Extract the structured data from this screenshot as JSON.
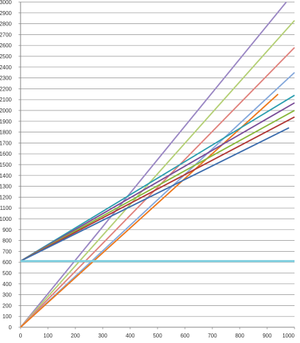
{
  "chart_data": {
    "type": "line",
    "title": "",
    "xlabel": "",
    "ylabel": "",
    "xlim": [
      0,
      1000
    ],
    "ylim": [
      0,
      3000
    ],
    "x_ticks": [
      0,
      100,
      200,
      300,
      400,
      500,
      600,
      700,
      800,
      900,
      1000
    ],
    "y_ticks": [
      0,
      100,
      200,
      300,
      400,
      500,
      600,
      700,
      800,
      900,
      1000,
      1100,
      1200,
      1300,
      1400,
      1500,
      1600,
      1700,
      1800,
      1900,
      2000,
      2100,
      2200,
      2300,
      2400,
      2500,
      2600,
      2700,
      2800,
      2900,
      3000
    ],
    "grid": true,
    "legend": "none",
    "series": [
      {
        "color": "#9B88C4",
        "x": [
          0,
          970
        ],
        "y": [
          0,
          3000
        ]
      },
      {
        "color": "#B5D077",
        "x": [
          0,
          1000
        ],
        "y": [
          0,
          2830
        ]
      },
      {
        "color": "#E0837E",
        "x": [
          0,
          1000
        ],
        "y": [
          0,
          2580
        ]
      },
      {
        "color": "#86A9DC",
        "x": [
          0,
          1000
        ],
        "y": [
          0,
          2350
        ]
      },
      {
        "color": "#ED7A1F",
        "x": [
          0,
          940
        ],
        "y": [
          0,
          2150
        ]
      },
      {
        "color": "#2E9FB0",
        "x": [
          0,
          1000
        ],
        "y": [
          610,
          2140
        ]
      },
      {
        "color": "#7B4E98",
        "x": [
          0,
          1000
        ],
        "y": [
          610,
          2070
        ]
      },
      {
        "color": "#8AB83D",
        "x": [
          0,
          1000
        ],
        "y": [
          610,
          2000
        ]
      },
      {
        "color": "#B13A38",
        "x": [
          0,
          1000
        ],
        "y": [
          610,
          1940
        ]
      },
      {
        "color": "#3F6FAE",
        "x": [
          0,
          980
        ],
        "y": [
          610,
          1840
        ]
      },
      {
        "color": "#7FCFE0",
        "x": [
          0,
          1000
        ],
        "y": [
          610,
          610
        ]
      }
    ]
  }
}
